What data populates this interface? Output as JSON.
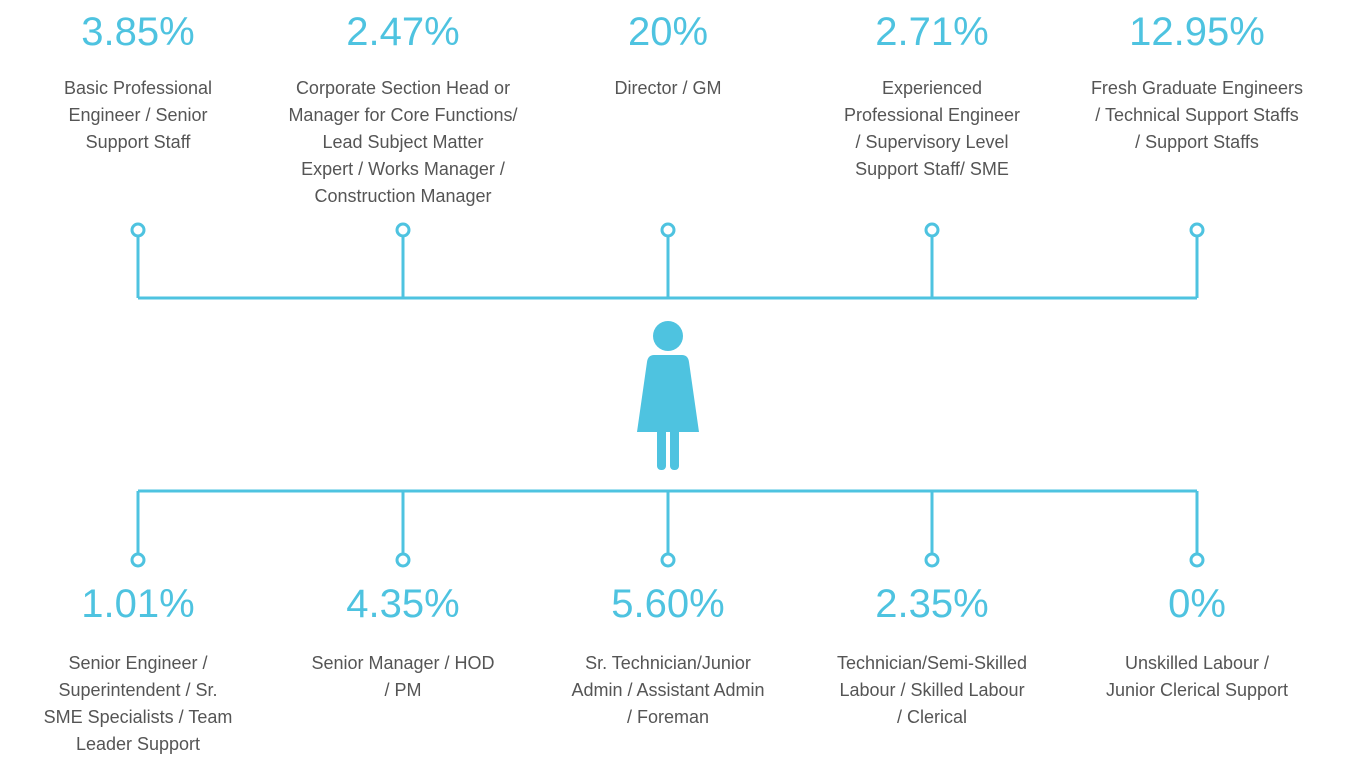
{
  "top": [
    {
      "value": "3.85%",
      "label": [
        "Basic Professional",
        "Engineer / Senior",
        "Support Staff"
      ]
    },
    {
      "value": "2.47%",
      "label": [
        "Corporate Section Head or",
        "Manager for Core Functions/",
        "Lead Subject Matter",
        "Expert / Works Manager /",
        "Construction Manager"
      ]
    },
    {
      "value": "20%",
      "label": [
        "Director / GM"
      ]
    },
    {
      "value": "2.71%",
      "label": [
        "Experienced",
        "Professional Engineer",
        "/ Supervisory Level",
        "Support Staff/ SME"
      ]
    },
    {
      "value": "12.95%",
      "label": [
        "Fresh Graduate Engineers",
        "/ Technical Support Staffs",
        "/ Support Staffs"
      ]
    }
  ],
  "bottom": [
    {
      "value": "1.01%",
      "label": [
        "Senior Engineer /",
        "Superintendent / Sr.",
        "SME Specialists / Team",
        "Leader Support"
      ]
    },
    {
      "value": "4.35%",
      "label": [
        "Senior Manager / HOD",
        "/ PM"
      ]
    },
    {
      "value": "5.60%",
      "label": [
        "Sr. Technician/Junior",
        "Admin / Assistant Admin",
        "/ Foreman"
      ]
    },
    {
      "value": "2.35%",
      "label": [
        "Technician/Semi-Skilled",
        "Labour / Skilled Labour",
        "/ Clerical"
      ]
    },
    {
      "value": "0%",
      "label": [
        "Unskilled Labour /",
        "Junior Clerical Support"
      ]
    }
  ]
}
